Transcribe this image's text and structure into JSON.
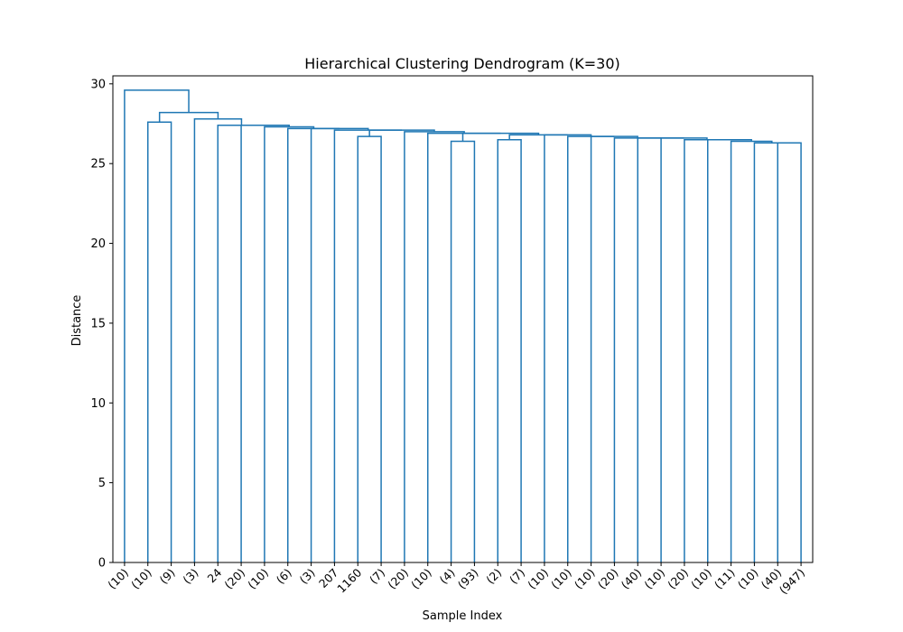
{
  "chart_data": {
    "type": "dendrogram",
    "title": "Hierarchical Clustering Dendrogram (K=30)",
    "xlabel": "Sample Index",
    "ylabel": "Distance",
    "ylim": [
      0,
      30.5
    ],
    "yticks": [
      0,
      5,
      10,
      15,
      20,
      25,
      30
    ],
    "grid": false,
    "color": "#1f77b4",
    "leaf_labels": [
      "(10)",
      "(10)",
      "(9)",
      "(3)",
      "24",
      "(20)",
      "(10)",
      "(6)",
      "(3)",
      "207",
      "1160",
      "(7)",
      "(20)",
      "(10)",
      "(4)",
      "(93)",
      "(2)",
      "(7)",
      "(10)",
      "(10)",
      "(10)",
      "(20)",
      "(40)",
      "(10)",
      "(20)",
      "(10)",
      "(11)",
      "(10)",
      "(40)",
      "(947)"
    ],
    "merges": [
      {
        "id": "A",
        "a": "L28",
        "b": "L29",
        "height": 26.3
      },
      {
        "id": "B",
        "a": "L27",
        "b": "A",
        "height": 26.3
      },
      {
        "id": "C",
        "a": "L26",
        "b": "B",
        "height": 26.4
      },
      {
        "id": "D",
        "a": "L25",
        "b": "C",
        "height": 26.5
      },
      {
        "id": "E",
        "a": "L24",
        "b": "D",
        "height": 26.5
      },
      {
        "id": "F",
        "a": "L23",
        "b": "E",
        "height": 26.6
      },
      {
        "id": "G",
        "a": "L22",
        "b": "F",
        "height": 26.6
      },
      {
        "id": "H",
        "a": "L21",
        "b": "G",
        "height": 26.6
      },
      {
        "id": "I",
        "a": "L20",
        "b": "H",
        "height": 26.7
      },
      {
        "id": "J",
        "a": "L19",
        "b": "I",
        "height": 26.7
      },
      {
        "id": "K",
        "a": "L18",
        "b": "J",
        "height": 26.8
      },
      {
        "id": "P",
        "a": "L16",
        "b": "L17",
        "height": 26.5
      },
      {
        "id": "L",
        "a": "P",
        "b": "K",
        "height": 26.8
      },
      {
        "id": "Q",
        "a": "L14",
        "b": "L15",
        "height": 26.4
      },
      {
        "id": "M",
        "a": "Q",
        "b": "L",
        "height": 26.9
      },
      {
        "id": "N",
        "a": "L13",
        "b": "M",
        "height": 26.9
      },
      {
        "id": "O",
        "a": "L12",
        "b": "N",
        "height": 27.0
      },
      {
        "id": "S",
        "a": "L10",
        "b": "L11",
        "height": 26.7
      },
      {
        "id": "R",
        "a": "S",
        "b": "O",
        "height": 27.1
      },
      {
        "id": "T",
        "a": "L9",
        "b": "R",
        "height": 27.1
      },
      {
        "id": "U",
        "a": "L8",
        "b": "T",
        "height": 27.2
      },
      {
        "id": "V",
        "a": "L7",
        "b": "U",
        "height": 27.2
      },
      {
        "id": "W",
        "a": "L6",
        "b": "V",
        "height": 27.3
      },
      {
        "id": "X",
        "a": "L5",
        "b": "W",
        "height": 27.4
      },
      {
        "id": "Y",
        "a": "L4",
        "b": "X",
        "height": 27.4
      },
      {
        "id": "Z",
        "a": "L3",
        "b": "Y",
        "height": 27.8
      },
      {
        "id": "AA",
        "a": "L1",
        "b": "L2",
        "height": 27.6
      },
      {
        "id": "AB",
        "a": "AA",
        "b": "Z",
        "height": 28.2
      },
      {
        "id": "AC",
        "a": "L0",
        "b": "AB",
        "height": 29.6
      }
    ]
  }
}
